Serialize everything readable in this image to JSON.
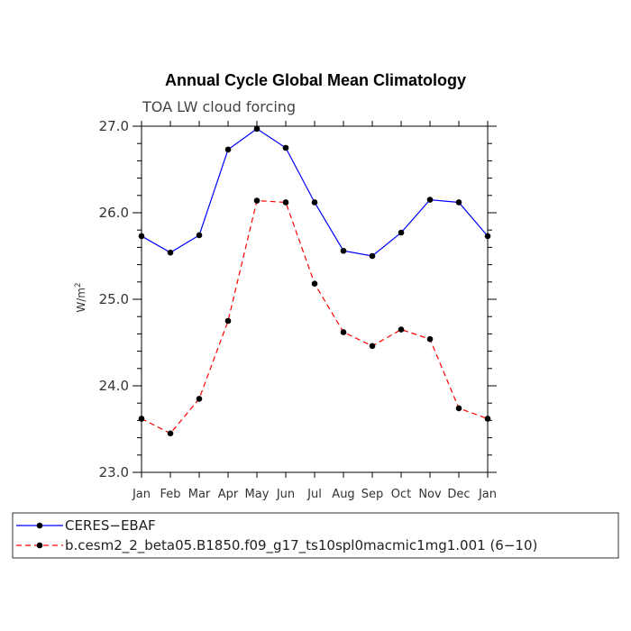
{
  "chart_data": {
    "type": "line",
    "title": "Annual Cycle Global Mean Climatology",
    "subtitle": "TOA LW cloud forcing",
    "ylabel_main": "W/m",
    "ylabel_sup": "2",
    "xlabel": "",
    "categories": [
      "Jan",
      "Feb",
      "Mar",
      "Apr",
      "May",
      "Jun",
      "Jul",
      "Aug",
      "Sep",
      "Oct",
      "Nov",
      "Dec",
      "Jan"
    ],
    "ylim": [
      23.0,
      27.0
    ],
    "yticks": [
      23.0,
      24.0,
      25.0,
      26.0,
      27.0
    ],
    "ytick_labels": [
      "23.0",
      "24.0",
      "25.0",
      "26.0",
      "27.0"
    ],
    "series": [
      {
        "name": "CERES−EBAF",
        "color": "#0000ff",
        "dash": "solid",
        "values": [
          25.73,
          25.54,
          25.74,
          26.73,
          26.97,
          26.75,
          26.12,
          25.56,
          25.5,
          25.77,
          26.15,
          26.12,
          25.73
        ]
      },
      {
        "name": "b.cesm2_2_beta05.B1850.f09_g17_ts10spl0macmic1mg1.001 (6−10)",
        "color": "#ff0000",
        "dash": "dashed",
        "values": [
          23.62,
          23.45,
          23.85,
          24.75,
          26.14,
          26.12,
          25.18,
          24.62,
          24.46,
          24.65,
          24.54,
          23.74,
          23.62
        ]
      }
    ],
    "legend_position": "bottom"
  }
}
